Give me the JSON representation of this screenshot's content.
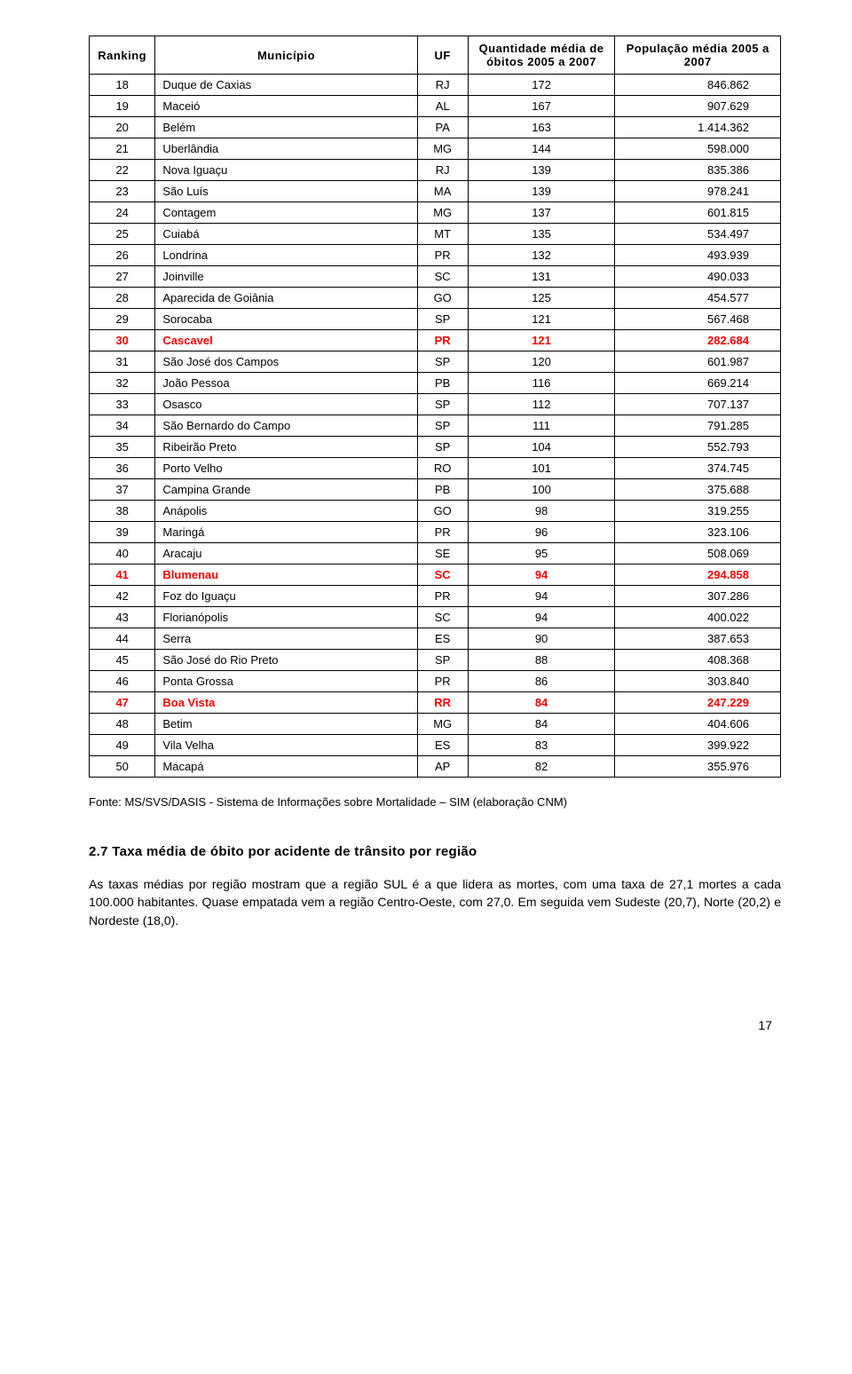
{
  "table": {
    "headers": {
      "ranking": "Ranking",
      "municipio": "Município",
      "uf": "UF",
      "qtd": "Quantidade média de óbitos 2005 a 2007",
      "pop": "População média 2005 a 2007"
    },
    "highlight_color": "#ff0000",
    "border_color": "#000000",
    "font_size_header": 13,
    "font_size_cell": 13,
    "rows": [
      {
        "rank": "18",
        "mun": "Duque de Caxias",
        "uf": "RJ",
        "qtd": "172",
        "pop": "846.862",
        "hl": false
      },
      {
        "rank": "19",
        "mun": "Maceió",
        "uf": "AL",
        "qtd": "167",
        "pop": "907.629",
        "hl": false
      },
      {
        "rank": "20",
        "mun": "Belém",
        "uf": "PA",
        "qtd": "163",
        "pop": "1.414.362",
        "hl": false
      },
      {
        "rank": "21",
        "mun": "Uberlândia",
        "uf": "MG",
        "qtd": "144",
        "pop": "598.000",
        "hl": false
      },
      {
        "rank": "22",
        "mun": "Nova Iguaçu",
        "uf": "RJ",
        "qtd": "139",
        "pop": "835.386",
        "hl": false
      },
      {
        "rank": "23",
        "mun": "São Luís",
        "uf": "MA",
        "qtd": "139",
        "pop": "978.241",
        "hl": false
      },
      {
        "rank": "24",
        "mun": "Contagem",
        "uf": "MG",
        "qtd": "137",
        "pop": "601.815",
        "hl": false
      },
      {
        "rank": "25",
        "mun": "Cuiabá",
        "uf": "MT",
        "qtd": "135",
        "pop": "534.497",
        "hl": false
      },
      {
        "rank": "26",
        "mun": "Londrina",
        "uf": "PR",
        "qtd": "132",
        "pop": "493.939",
        "hl": false
      },
      {
        "rank": "27",
        "mun": "Joinville",
        "uf": "SC",
        "qtd": "131",
        "pop": "490.033",
        "hl": false
      },
      {
        "rank": "28",
        "mun": "Aparecida de Goiânia",
        "uf": "GO",
        "qtd": "125",
        "pop": "454.577",
        "hl": false
      },
      {
        "rank": "29",
        "mun": "Sorocaba",
        "uf": "SP",
        "qtd": "121",
        "pop": "567.468",
        "hl": false
      },
      {
        "rank": "30",
        "mun": "Cascavel",
        "uf": "PR",
        "qtd": "121",
        "pop": "282.684",
        "hl": true
      },
      {
        "rank": "31",
        "mun": "São José dos Campos",
        "uf": "SP",
        "qtd": "120",
        "pop": "601.987",
        "hl": false
      },
      {
        "rank": "32",
        "mun": "João Pessoa",
        "uf": "PB",
        "qtd": "116",
        "pop": "669.214",
        "hl": false
      },
      {
        "rank": "33",
        "mun": "Osasco",
        "uf": "SP",
        "qtd": "112",
        "pop": "707.137",
        "hl": false
      },
      {
        "rank": "34",
        "mun": "São Bernardo do Campo",
        "uf": "SP",
        "qtd": "111",
        "pop": "791.285",
        "hl": false
      },
      {
        "rank": "35",
        "mun": "Ribeirão Preto",
        "uf": "SP",
        "qtd": "104",
        "pop": "552.793",
        "hl": false
      },
      {
        "rank": "36",
        "mun": "Porto Velho",
        "uf": "RO",
        "qtd": "101",
        "pop": "374.745",
        "hl": false
      },
      {
        "rank": "37",
        "mun": "Campina Grande",
        "uf": "PB",
        "qtd": "100",
        "pop": "375.688",
        "hl": false
      },
      {
        "rank": "38",
        "mun": "Anápolis",
        "uf": "GO",
        "qtd": "98",
        "pop": "319.255",
        "hl": false
      },
      {
        "rank": "39",
        "mun": "Maringá",
        "uf": "PR",
        "qtd": "96",
        "pop": "323.106",
        "hl": false
      },
      {
        "rank": "40",
        "mun": "Aracaju",
        "uf": "SE",
        "qtd": "95",
        "pop": "508.069",
        "hl": false
      },
      {
        "rank": "41",
        "mun": "Blumenau",
        "uf": "SC",
        "qtd": "94",
        "pop": "294.858",
        "hl": true
      },
      {
        "rank": "42",
        "mun": "Foz do Iguaçu",
        "uf": "PR",
        "qtd": "94",
        "pop": "307.286",
        "hl": false
      },
      {
        "rank": "43",
        "mun": "Florianópolis",
        "uf": "SC",
        "qtd": "94",
        "pop": "400.022",
        "hl": false
      },
      {
        "rank": "44",
        "mun": "Serra",
        "uf": "ES",
        "qtd": "90",
        "pop": "387.653",
        "hl": false
      },
      {
        "rank": "45",
        "mun": "São José do Rio Preto",
        "uf": "SP",
        "qtd": "88",
        "pop": "408.368",
        "hl": false
      },
      {
        "rank": "46",
        "mun": "Ponta Grossa",
        "uf": "PR",
        "qtd": "86",
        "pop": "303.840",
        "hl": false
      },
      {
        "rank": "47",
        "mun": "Boa Vista",
        "uf": "RR",
        "qtd": "84",
        "pop": "247.229",
        "hl": true
      },
      {
        "rank": "48",
        "mun": "Betim",
        "uf": "MG",
        "qtd": "84",
        "pop": "404.606",
        "hl": false
      },
      {
        "rank": "49",
        "mun": "Vila Velha",
        "uf": "ES",
        "qtd": "83",
        "pop": "399.922",
        "hl": false
      },
      {
        "rank": "50",
        "mun": "Macapá",
        "uf": "AP",
        "qtd": "82",
        "pop": "355.976",
        "hl": false
      }
    ]
  },
  "fonte": "Fonte: MS/SVS/DASIS - Sistema de Informações sobre Mortalidade – SIM (elaboração CNM)",
  "section_title": "2.7 Taxa média de óbito por acidente de trânsito por região",
  "paragraph": "As taxas médias por região mostram que a região SUL é a que lidera as mortes, com uma taxa de 27,1 mortes a cada 100.000 habitantes. Quase empatada vem a região Centro-Oeste, com 27,0. Em seguida vem Sudeste (20,7), Norte (20,2) e Nordeste (18,0).",
  "page_number": "17"
}
